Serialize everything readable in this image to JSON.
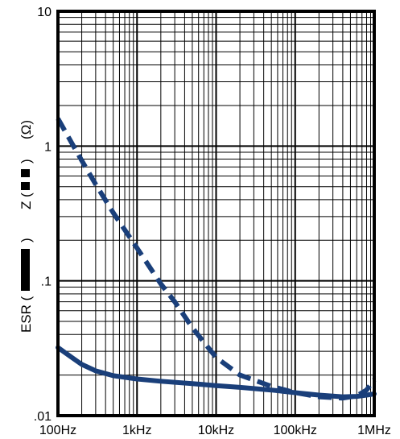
{
  "chart_data": {
    "type": "line",
    "x_scale": "log",
    "y_scale": "log",
    "xlim": [
      100,
      1000000
    ],
    "ylim": [
      0.01,
      10
    ],
    "grid": true,
    "x_tick_labels": [
      {
        "value": 100,
        "label": "100Hz"
      },
      {
        "value": 1000,
        "label": "1kHz"
      },
      {
        "value": 10000,
        "label": "10kHz"
      },
      {
        "value": 100000,
        "label": "100kHz"
      },
      {
        "value": 1000000,
        "label": "1MHz"
      }
    ],
    "y_tick_labels": [
      {
        "value": 0.01,
        "label": ".01"
      },
      {
        "value": 0.1,
        "label": ".1"
      },
      {
        "value": 1,
        "label": "1"
      },
      {
        "value": 10,
        "label": "10"
      }
    ],
    "ylabel_parts": {
      "esr": "ESR (",
      "esr_close": ")",
      "z": "Z (",
      "z_close": ")",
      "unit": "(Ω)"
    },
    "series": [
      {
        "key": "Z",
        "style": "dashed",
        "color": "#1a3f7a",
        "points": [
          [
            100,
            1.6
          ],
          [
            150,
            1.05
          ],
          [
            200,
            0.78
          ],
          [
            300,
            0.52
          ],
          [
            500,
            0.32
          ],
          [
            1000,
            0.175
          ],
          [
            2000,
            0.095
          ],
          [
            3000,
            0.07
          ],
          [
            5000,
            0.045
          ],
          [
            10000,
            0.027
          ],
          [
            20000,
            0.02
          ],
          [
            50000,
            0.0165
          ],
          [
            100000,
            0.0148
          ],
          [
            200000,
            0.0138
          ],
          [
            400000,
            0.0135
          ],
          [
            600000,
            0.014
          ],
          [
            800000,
            0.0155
          ],
          [
            1000000,
            0.0185
          ]
        ]
      },
      {
        "key": "ESR",
        "style": "solid",
        "color": "#1a3f7a",
        "points": [
          [
            100,
            0.032
          ],
          [
            150,
            0.027
          ],
          [
            200,
            0.024
          ],
          [
            300,
            0.0215
          ],
          [
            500,
            0.0198
          ],
          [
            1000,
            0.0187
          ],
          [
            2000,
            0.018
          ],
          [
            5000,
            0.0173
          ],
          [
            10000,
            0.0167
          ],
          [
            20000,
            0.0162
          ],
          [
            50000,
            0.0155
          ],
          [
            100000,
            0.0148
          ],
          [
            200000,
            0.0142
          ],
          [
            400000,
            0.0138
          ],
          [
            600000,
            0.0139
          ],
          [
            800000,
            0.0142
          ],
          [
            1000000,
            0.0145
          ]
        ]
      }
    ]
  }
}
